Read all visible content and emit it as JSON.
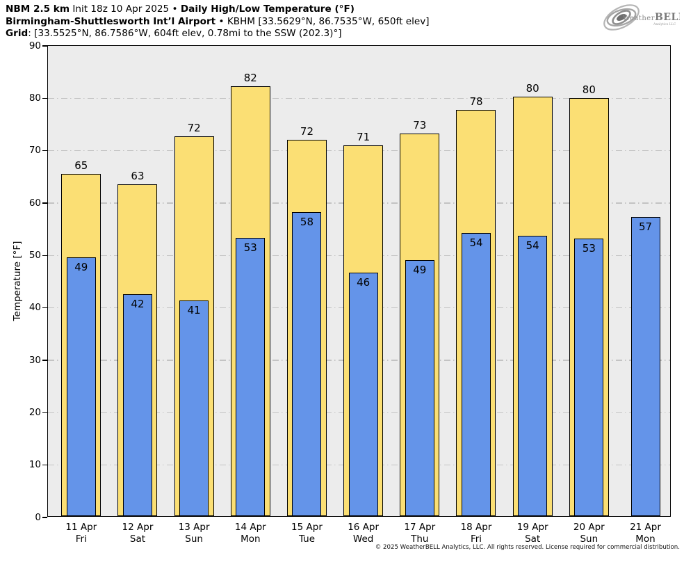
{
  "header": {
    "line1": {
      "bold1": "NBM 2.5 km",
      "reg1": " Init 18z 10 Apr 2025 • ",
      "bold2": "Daily High/Low Temperature (°F)"
    },
    "line2": {
      "bold": "Birmingham-Shuttlesworth Int’l Airport",
      "reg": " • KBHM [33.5629°N, 86.7535°W, 650ft elev]"
    },
    "line3": {
      "bold": "Grid",
      "reg": ": [33.5525°N, 86.7586°W, 604ft elev, 0.78mi to the SSW (202.3)°]"
    }
  },
  "logo": {
    "brand_weather": "Weather",
    "brand_bell": "BELL",
    "subtext": "Analytics LLC"
  },
  "footer": {
    "copyright": "© 2025 WeatherBELL Analytics, LLC. All rights reserved. License required for commercial distribution."
  },
  "chart_data": {
    "type": "bar",
    "title": "Daily High/Low Temperature (°F)",
    "station": "KBHM Birmingham-Shuttlesworth Int’l Airport",
    "xlabel": "",
    "ylabel": "Temperature [°F]",
    "ylim": [
      0,
      90
    ],
    "yticks": [
      0,
      10,
      20,
      30,
      40,
      50,
      60,
      70,
      80,
      90
    ],
    "grid": "horizontal dash-dot",
    "legend_position": "none",
    "categories": [
      {
        "date": "11 Apr",
        "day": "Fri"
      },
      {
        "date": "12 Apr",
        "day": "Sat"
      },
      {
        "date": "13 Apr",
        "day": "Sun"
      },
      {
        "date": "14 Apr",
        "day": "Mon"
      },
      {
        "date": "15 Apr",
        "day": "Tue"
      },
      {
        "date": "16 Apr",
        "day": "Wed"
      },
      {
        "date": "17 Apr",
        "day": "Thu"
      },
      {
        "date": "18 Apr",
        "day": "Fri"
      },
      {
        "date": "19 Apr",
        "day": "Sat"
      },
      {
        "date": "20 Apr",
        "day": "Sun"
      },
      {
        "date": "21 Apr",
        "day": "Mon"
      }
    ],
    "series": [
      {
        "name": "Daily High",
        "color": "#fbdf74",
        "values": [
          65.3,
          63.3,
          72.5,
          82.0,
          71.8,
          70.7,
          73.0,
          77.5,
          80.0,
          79.8,
          null
        ],
        "labels": [
          65,
          63,
          72,
          82,
          72,
          71,
          73,
          78,
          80,
          80,
          null
        ]
      },
      {
        "name": "Daily Low",
        "color": "#6494e9",
        "values": [
          49.4,
          42.4,
          41.1,
          53.1,
          58.0,
          46.4,
          48.8,
          54.0,
          53.5,
          53.0,
          57.1
        ],
        "labels": [
          49,
          42,
          41,
          53,
          58,
          46,
          49,
          54,
          54,
          53,
          57
        ]
      }
    ],
    "colors": {
      "high_fill": "#fbdf74",
      "low_fill": "#6494e9",
      "bar_border": "#000000",
      "plot_background": "#ececec",
      "gridline": "#c3c3c3"
    }
  }
}
